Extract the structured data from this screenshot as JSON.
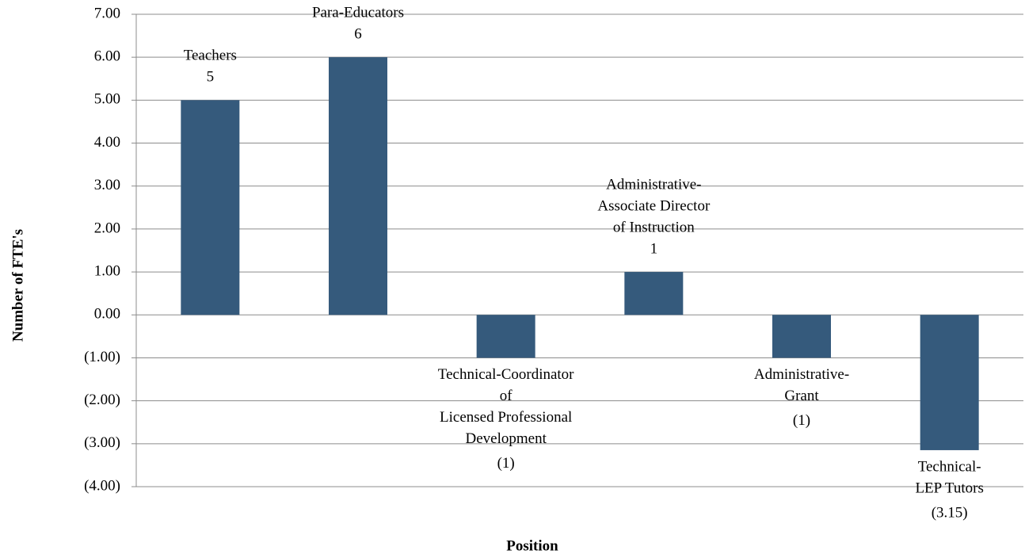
{
  "chart_data": {
    "type": "bar",
    "x_label": "Position",
    "y_label": "Number of FTE's",
    "categories": [
      [
        "Teachers"
      ],
      [
        "Para-Educators"
      ],
      [
        "Technical-Coordinator",
        "of",
        "Licensed Professional",
        "Development"
      ],
      [
        "Administrative-",
        "Associate Director",
        "of Instruction"
      ],
      [
        "Administrative-",
        "Grant"
      ],
      [
        "Technical-",
        "LEP Tutors"
      ]
    ],
    "values": [
      5,
      6,
      -1,
      1,
      -1,
      -3.15
    ],
    "value_labels": [
      "5",
      "6",
      "(1)",
      "1",
      "(1)",
      "(3.15)"
    ],
    "color": "#355a7c",
    "ylim": [
      -4,
      7
    ],
    "yticks": [
      {
        "value": -4,
        "label": "(4.00)"
      },
      {
        "value": -3,
        "label": "(3.00)"
      },
      {
        "value": -2,
        "label": "(2.00)"
      },
      {
        "value": -1,
        "label": "(1.00)"
      },
      {
        "value": 0,
        "label": "0.00"
      },
      {
        "value": 1,
        "label": "1.00"
      },
      {
        "value": 2,
        "label": "2.00"
      },
      {
        "value": 3,
        "label": "3.00"
      },
      {
        "value": 4,
        "label": "4.00"
      },
      {
        "value": 5,
        "label": "5.00"
      },
      {
        "value": 6,
        "label": "6.00"
      },
      {
        "value": 7,
        "label": "7.00"
      }
    ],
    "grid": true
  }
}
